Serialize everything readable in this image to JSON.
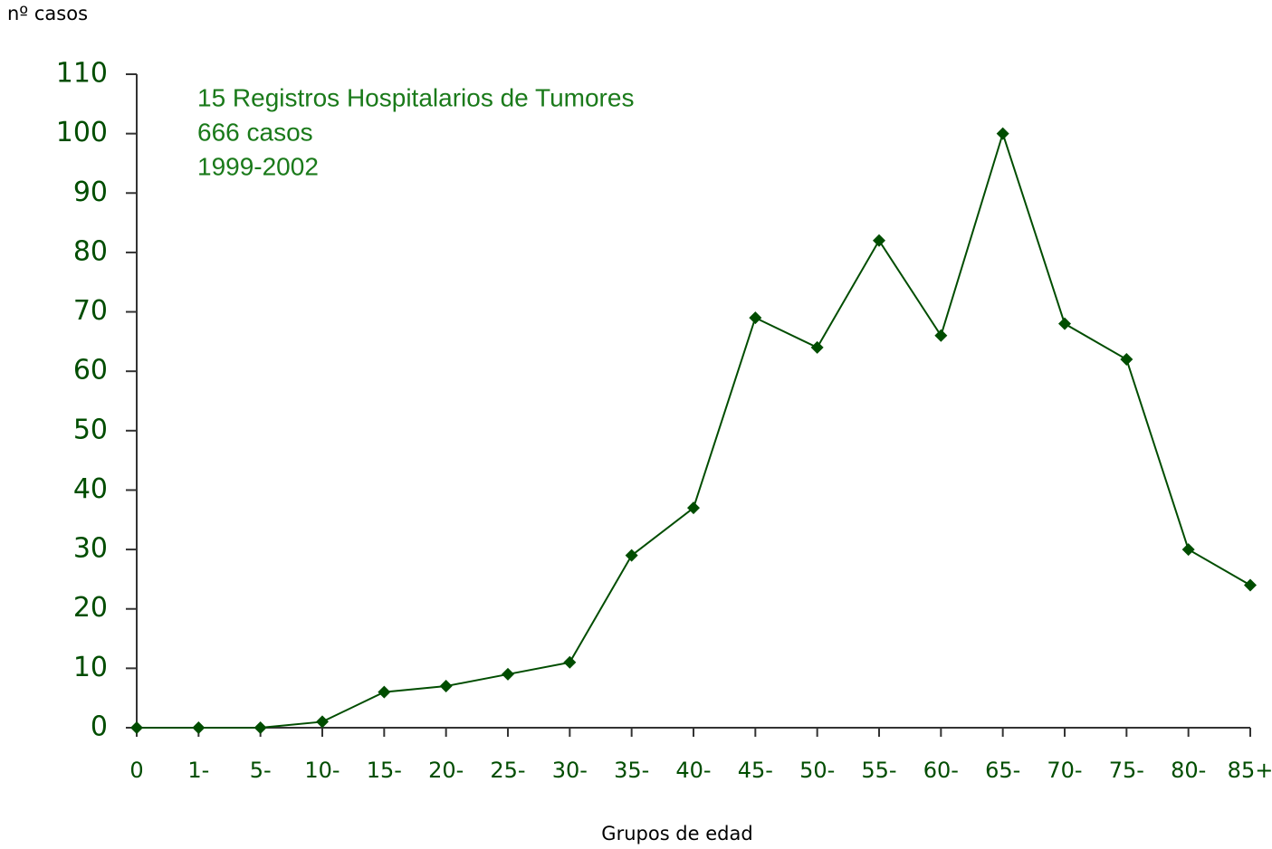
{
  "chart_data": {
    "type": "line",
    "y_label": "nº casos",
    "x_label": "Grupos de edad",
    "annotations": [
      "15 Registros Hospitalarios de Tumores",
      "666 casos",
      "1999-2002"
    ],
    "categories": [
      "0",
      "1-",
      "5-",
      "10-",
      "15-",
      "20-",
      "25-",
      "30-",
      "35-",
      "40-",
      "45-",
      "50-",
      "55-",
      "60-",
      "65-",
      "70-",
      "75-",
      "80-",
      "85+"
    ],
    "values": [
      0,
      0,
      0,
      1,
      6,
      7,
      9,
      11,
      29,
      37,
      69,
      64,
      82,
      66,
      100,
      68,
      62,
      30,
      24
    ],
    "color": "#004d00",
    "ylim": [
      0,
      110
    ],
    "yticks": [
      0,
      10,
      20,
      30,
      40,
      50,
      60,
      70,
      80,
      90,
      100,
      110
    ],
    "grid": false
  }
}
